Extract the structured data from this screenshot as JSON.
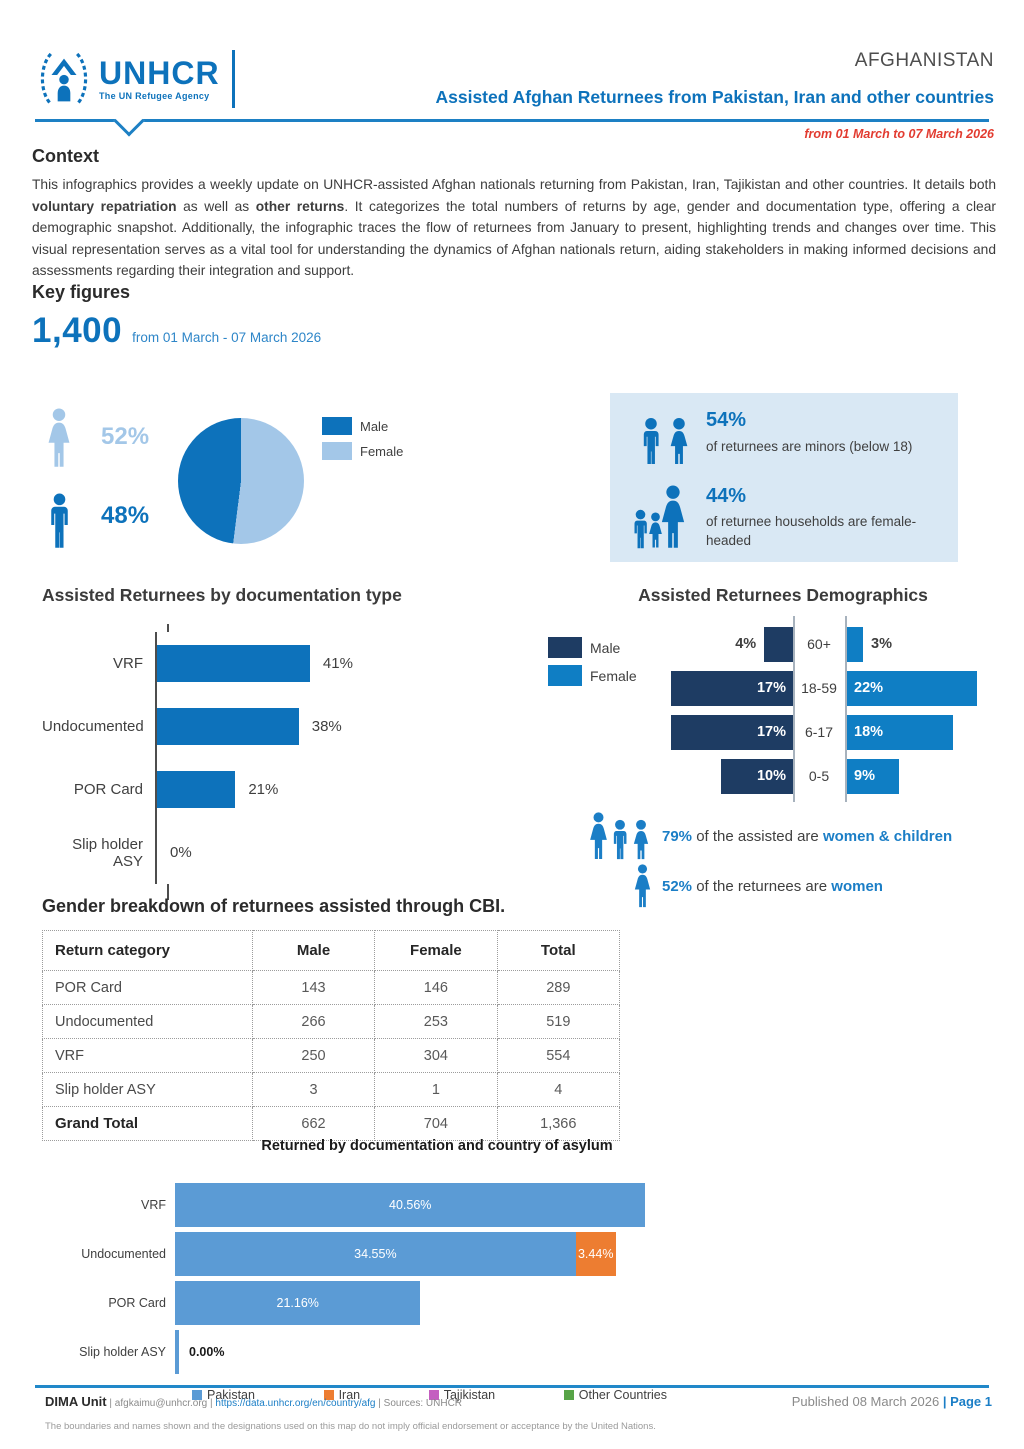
{
  "header": {
    "country": "AFGHANISTAN",
    "title": "Assisted Afghan Returnees from Pakistan, Iran and other countries",
    "logo_name": "UNHCR",
    "logo_tagline": "The UN Refugee Agency",
    "date_range": "from 01 March to 07 March 2026"
  },
  "context": {
    "heading": "Context",
    "s1": "This infographics provides a weekly update on UNHCR-assisted Afghan nationals returning from Pakistan, Iran, Tajikistan and other countries. It details both ",
    "b1": "voluntary repatriation",
    "s2": " as well as ",
    "b2": "other returns",
    "s3": ". It categorizes the total numbers of returns by age, gender and documentation type, offering a clear demographic snapshot. Additionally, the infographic traces the flow of returnees from January to present, highlighting trends and changes over time. This visual representation serves as a vital tool for understanding the dynamics of Afghan nationals return, aiding stakeholders in making informed decisions and assessments regarding their integration and support."
  },
  "key_figures": {
    "heading": "Key figures",
    "total": "1,400",
    "period": "from 01 March - 07 March 2026"
  },
  "gender": {
    "female_pct": "52%",
    "male_pct": "48%"
  },
  "highlights": {
    "minors_pct": "54%",
    "minors_text": "of returnees are minors (below 18)",
    "female_headed_pct": "44%",
    "female_headed_text": "of returnee households are female-headed"
  },
  "stats": {
    "wc_pct": "79%",
    "wc_mid": "of the assisted are",
    "wc_hl": "women & children",
    "w_pct": "52%",
    "w_mid": "of the returnees are",
    "w_hl": "women"
  },
  "cbi": {
    "title": "Gender breakdown of returnees assisted through CBI.",
    "headers": [
      "Return category",
      "Male",
      "Female",
      "Total"
    ],
    "rows": [
      [
        "POR Card",
        "143",
        "146",
        "289"
      ],
      [
        "Undocumented",
        "266",
        "253",
        "519"
      ],
      [
        "VRF",
        "250",
        "304",
        "554"
      ],
      [
        "Slip holder ASY",
        "3",
        "1",
        "4"
      ]
    ],
    "grand": [
      "Grand Total",
      "662",
      "704",
      "1,366"
    ]
  },
  "footer": {
    "unit": "DIMA Unit",
    "sep": "|",
    "email": "afgkaimu@unhcr.org",
    "url": "https://data.unhcr.org/en/country/afg",
    "sources": "Sources: UNHCR",
    "published": "Published 08 March 2026",
    "page": "Page 1",
    "disclaimer": "The boundaries and names shown and the designations used on this map do not imply official endorsement or acceptance by the United Nations."
  },
  "chart_data": [
    {
      "id": "gender_pie",
      "type": "pie",
      "labels": [
        "Male",
        "Female"
      ],
      "values": [
        48,
        52
      ],
      "colors": [
        "#0d72bb",
        "#a3c7e8"
      ],
      "legend_position": "right"
    },
    {
      "id": "documentation_type",
      "type": "bar",
      "title": "Assisted Returnees by documentation type",
      "categories": [
        "VRF",
        "Undocumented",
        "POR Card",
        "Slip holder ASY"
      ],
      "values": [
        41,
        38,
        21,
        0
      ],
      "value_labels": [
        "41%",
        "38%",
        "21%",
        "0%"
      ],
      "color": "#0d72bb",
      "orientation": "horizontal"
    },
    {
      "id": "demographics_pyramid",
      "type": "bar",
      "title": "Assisted Returnees Demographics",
      "categories": [
        "60+",
        "18-59",
        "6-17",
        "0-5"
      ],
      "series": [
        {
          "name": "Male",
          "color": "#1e3c63",
          "values": [
            4,
            17,
            17,
            10
          ],
          "labels": [
            "4%",
            "17%",
            "17%",
            "10%"
          ]
        },
        {
          "name": "Female",
          "color": "#0f7ec4",
          "values": [
            3,
            22,
            18,
            9
          ],
          "labels": [
            "3%",
            "22%",
            "18%",
            "9%"
          ]
        }
      ],
      "orientation": "pyramid"
    },
    {
      "id": "asylum_country",
      "type": "bar",
      "stacked": true,
      "title": "Returned by documentation and country of asylum",
      "categories": [
        "VRF",
        "Undocumented",
        "POR Card",
        "Slip holder ASY"
      ],
      "series": [
        {
          "name": "Pakistan",
          "color": "#5b9bd5",
          "values": [
            40.56,
            34.55,
            21.16,
            0
          ],
          "labels": [
            "40.56%",
            "34.55%",
            "21.16%",
            ""
          ]
        },
        {
          "name": "Iran",
          "color": "#ed7d31",
          "values": [
            0,
            3.44,
            0,
            0
          ],
          "labels": [
            "",
            "3.44%",
            "",
            ""
          ]
        },
        {
          "name": "Tajikistan",
          "color": "#c45ec0",
          "values": [
            0,
            0,
            0,
            0
          ],
          "labels": [
            "",
            "",
            "",
            ""
          ]
        },
        {
          "name": "Other Countries",
          "color": "#57a447",
          "values": [
            0,
            0,
            0,
            0
          ],
          "labels": [
            "",
            "",
            "",
            ""
          ]
        }
      ],
      "zero_label": "0.00%",
      "orientation": "horizontal",
      "legend_position": "bottom"
    }
  ]
}
